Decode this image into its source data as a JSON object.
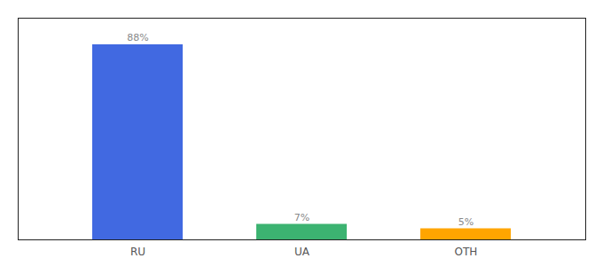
{
  "chart_data": {
    "type": "bar",
    "categories": [
      "RU",
      "UA",
      "OTH"
    ],
    "values": [
      88,
      7,
      5
    ],
    "value_labels": [
      "88%",
      "7%",
      "5%"
    ],
    "colors": [
      "#4169E1",
      "#3CB371",
      "#FFA500"
    ],
    "ylim": [
      0,
      100
    ],
    "data_labels": true,
    "tick_labels": "x"
  }
}
